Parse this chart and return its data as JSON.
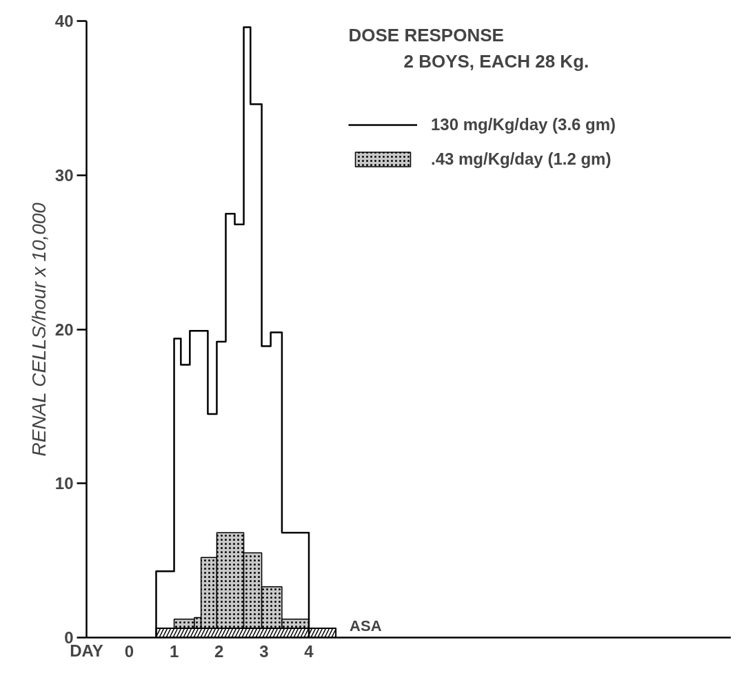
{
  "chart_data": {
    "type": "histogram",
    "title": "DOSE RESPONSE",
    "subtitle": "2 BOYS, EACH 28 Kg.",
    "xlabel": "DAY",
    "ylabel": "RENAL CELLS/hour x 10,000",
    "bins": [
      1.0,
      1.45,
      1.6,
      1.95,
      2.55,
      2.95,
      3.4,
      4.0
    ],
    "series": [
      {
        "name": "130 mg/Kg/day (3.6 gm)",
        "type": "step",
        "color": "#000000",
        "x": [
          0.6,
          0.6,
          1.0,
          1.15,
          1.35,
          1.75,
          1.95,
          2.15,
          2.35,
          2.55,
          2.7,
          2.95,
          3.15,
          3.4,
          4.0,
          4.0
        ],
        "values": [
          0,
          4.3,
          19.4,
          17.7,
          19.9,
          14.5,
          19.2,
          27.5,
          26.8,
          39.6,
          34.6,
          18.9,
          19.8,
          6.8,
          6.8,
          0
        ]
      },
      {
        "name": ".43 mg/Kg/day (1.2 gm)",
        "color": "#c8c8c8",
        "values": [
          1.2,
          1.3,
          5.2,
          6.8,
          5.5,
          3.3,
          1.2
        ]
      },
      {
        "name": "ASA",
        "type": "area",
        "color": "#000000",
        "x": [
          0.6,
          4.6
        ],
        "values": [
          0.6,
          0.6
        ]
      }
    ],
    "xlim": [
      -0.95,
      13.4
    ],
    "xticks": [
      0,
      1,
      2,
      3,
      4
    ],
    "ylim": [
      0,
      40
    ],
    "yticks": [
      0,
      10,
      20,
      30,
      40
    ],
    "grid": false,
    "legend": "top right"
  }
}
